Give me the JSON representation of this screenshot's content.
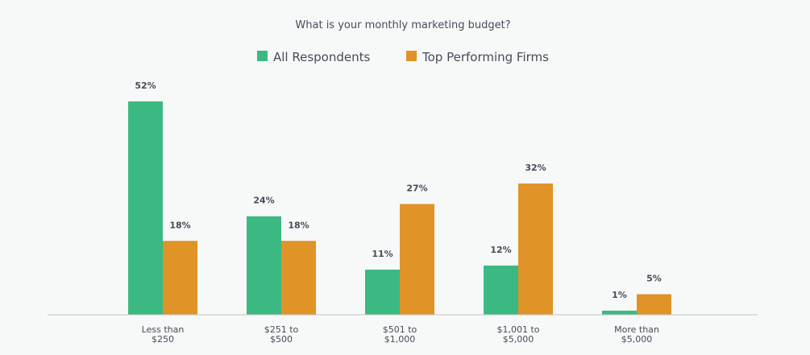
{
  "chart_data": {
    "type": "bar",
    "title": "What is your monthly marketing budget?",
    "xlabel": "",
    "ylabel": "",
    "ylim": [
      0,
      52
    ],
    "grid": false,
    "legend_placement": "top-center",
    "categories": [
      [
        "Less than",
        "$250"
      ],
      [
        "$251 to",
        "$500"
      ],
      [
        "$501 to",
        "$1,000"
      ],
      [
        "$1,001 to",
        "$5,000"
      ],
      [
        "More than",
        "$5,000"
      ]
    ],
    "series": [
      {
        "name": "All Respondents",
        "color": "#3cb982",
        "values": [
          52,
          24,
          11,
          12,
          1
        ],
        "labels": [
          "52%",
          "24%",
          "11%",
          "12%",
          "1%"
        ]
      },
      {
        "name": "Top Performing Firms",
        "color": "#e09326",
        "values": [
          18,
          18,
          27,
          32,
          5
        ],
        "labels": [
          "18%",
          "18%",
          "27%",
          "32%",
          "5%"
        ]
      }
    ]
  }
}
